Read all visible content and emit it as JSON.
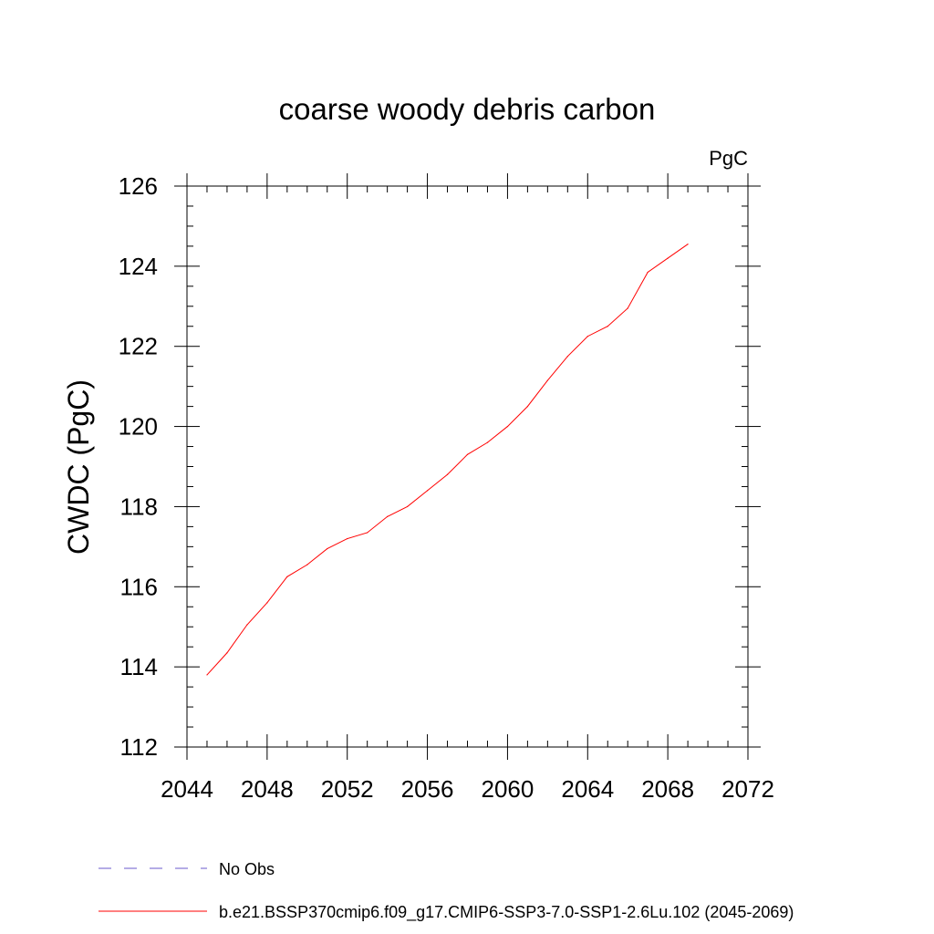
{
  "chart_data": {
    "type": "line",
    "title": "coarse woody debris carbon",
    "units_label": "PgC",
    "xlabel": "",
    "ylabel": "CWDC  (PgC)",
    "xlim": [
      2044,
      2072
    ],
    "ylim": [
      112,
      126
    ],
    "xticks": [
      "2044",
      "2048",
      "2052",
      "2056",
      "2060",
      "2064",
      "2068",
      "2072"
    ],
    "yticks": [
      "112",
      "114",
      "116",
      "118",
      "120",
      "122",
      "124",
      "126"
    ],
    "grid": false,
    "series": [
      {
        "name": "b.e21.BSSP370cmip6.f09_g17.CMIP6-SSP3-7.0-SSP1-2.6Lu.102 (2045-2069)",
        "color": "#ff0000",
        "x": [
          2045,
          2046,
          2047,
          2048,
          2049,
          2050,
          2051,
          2052,
          2053,
          2054,
          2055,
          2056,
          2057,
          2058,
          2059,
          2060,
          2061,
          2062,
          2063,
          2064,
          2065,
          2066,
          2067,
          2068,
          2069
        ],
        "values": [
          113.8,
          114.35,
          115.05,
          115.6,
          116.25,
          116.55,
          116.95,
          117.2,
          117.35,
          117.75,
          118.0,
          118.4,
          118.8,
          119.3,
          119.6,
          120.0,
          120.5,
          121.15,
          121.75,
          122.25,
          122.5,
          122.95,
          123.85,
          124.2,
          124.55
        ]
      }
    ],
    "legend": {
      "placement": "bottom",
      "entries": [
        {
          "label": "No Obs",
          "color": "#6a5acd",
          "style": "dashed"
        },
        {
          "label": "b.e21.BSSP370cmip6.f09_g17.CMIP6-SSP3-7.0-SSP1-2.6Lu.102 (2045-2069)",
          "color": "#ff0000",
          "style": "solid"
        }
      ]
    }
  }
}
